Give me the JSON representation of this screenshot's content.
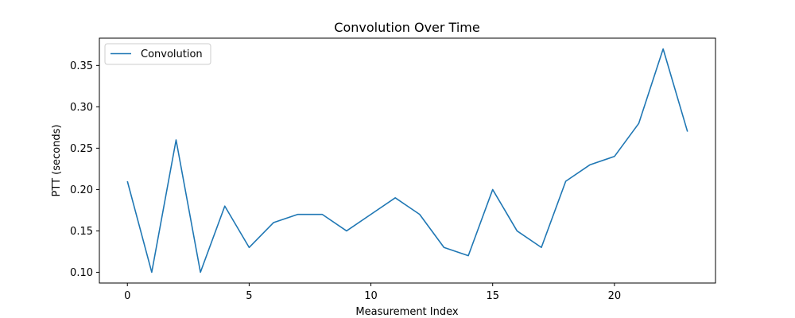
{
  "chart_data": {
    "type": "line",
    "title": "Convolution Over Time",
    "xlabel": "Measurement Index",
    "ylabel": "PTT (seconds)",
    "xlim": [
      -1.15,
      24.15
    ],
    "ylim": [
      0.087,
      0.383
    ],
    "xticks": [
      0,
      5,
      10,
      15,
      20
    ],
    "xtick_labels": [
      "0",
      "5",
      "10",
      "15",
      "20"
    ],
    "yticks": [
      0.1,
      0.15,
      0.2,
      0.25,
      0.3,
      0.35
    ],
    "ytick_labels": [
      "0.10",
      "0.15",
      "0.20",
      "0.25",
      "0.30",
      "0.35"
    ],
    "grid": false,
    "legend_position": "upper-left",
    "series": [
      {
        "name": "Convolution",
        "color": "#1f77b4",
        "x": [
          0,
          1,
          2,
          3,
          4,
          5,
          6,
          7,
          8,
          9,
          10,
          11,
          12,
          13,
          14,
          15,
          16,
          17,
          18,
          19,
          20,
          21,
          22,
          23
        ],
        "values": [
          0.21,
          0.1,
          0.26,
          0.1,
          0.18,
          0.13,
          0.16,
          0.17,
          0.17,
          0.15,
          0.17,
          0.19,
          0.17,
          0.13,
          0.12,
          0.2,
          0.15,
          0.13,
          0.21,
          0.23,
          0.24,
          0.28,
          0.37,
          0.27
        ]
      }
    ]
  }
}
